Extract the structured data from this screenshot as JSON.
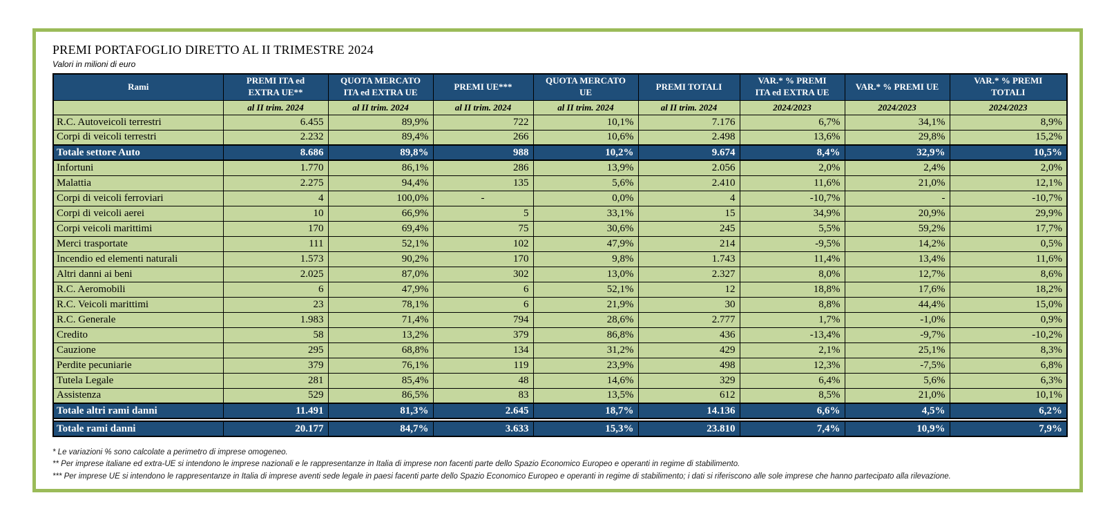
{
  "title": "PREMI PORTAFOGLIO DIRETTO AL II TRIMESTRE 2024",
  "subtitle": "Valori in milioni di euro",
  "colors": {
    "header_bg": "#1F4E79",
    "row_bg": "#C5D79E",
    "frame_border": "#9BBB59",
    "header_text": "#FFFFFF",
    "body_text": "#000000"
  },
  "table": {
    "columns": [
      {
        "label": "Rami",
        "sub": ""
      },
      {
        "label": "PREMI ITA ed\nEXTRA UE**",
        "sub": "al II trim. 2024"
      },
      {
        "label": "QUOTA MERCATO\nITA ed EXTRA UE",
        "sub": "al II trim. 2024"
      },
      {
        "label": "PREMI UE***",
        "sub": "al II trim. 2024"
      },
      {
        "label": "QUOTA MERCATO\nUE",
        "sub": "al II trim. 2024"
      },
      {
        "label": "PREMI TOTALI",
        "sub": "al II trim. 2024"
      },
      {
        "label": "VAR.* % PREMI\nITA ed EXTRA UE",
        "sub": "2024/2023"
      },
      {
        "label": "VAR.* % PREMI UE",
        "sub": "2024/2023"
      },
      {
        "label": "VAR.* % PREMI\nTOTALI",
        "sub": "2024/2023"
      }
    ],
    "rows": [
      {
        "type": "data",
        "cells": [
          "R.C. Autoveicoli terrestri",
          "6.455",
          "89,9%",
          "722",
          "10,1%",
          "7.176",
          "6,7%",
          "34,1%",
          "8,9%"
        ]
      },
      {
        "type": "data",
        "cells": [
          "Corpi di veicoli terrestri",
          "2.232",
          "89,4%",
          "266",
          "10,6%",
          "2.498",
          "13,6%",
          "29,8%",
          "15,2%"
        ]
      },
      {
        "type": "total",
        "cells": [
          "Totale settore Auto",
          "8.686",
          "89,8%",
          "988",
          "10,2%",
          "9.674",
          "8,4%",
          "32,9%",
          "10,5%"
        ]
      },
      {
        "type": "data",
        "cells": [
          "Infortuni",
          "1.770",
          "86,1%",
          "286",
          "13,9%",
          "2.056",
          "2,0%",
          "2,4%",
          "2,0%"
        ]
      },
      {
        "type": "data",
        "cells": [
          "Malattia",
          "2.275",
          "94,4%",
          "135",
          "5,6%",
          "2.410",
          "11,6%",
          "21,0%",
          "12,1%"
        ]
      },
      {
        "type": "data",
        "cells": [
          "Corpi di veicoli ferroviari",
          "4",
          "100,0%",
          "-",
          "0,0%",
          "4",
          "-10,7%",
          "-",
          "-10,7%"
        ]
      },
      {
        "type": "data",
        "cells": [
          "Corpi di veicoli aerei",
          "10",
          "66,9%",
          "5",
          "33,1%",
          "15",
          "34,9%",
          "20,9%",
          "29,9%"
        ]
      },
      {
        "type": "data",
        "cells": [
          "Corpi veicoli marittimi",
          "170",
          "69,4%",
          "75",
          "30,6%",
          "245",
          "5,5%",
          "59,2%",
          "17,7%"
        ]
      },
      {
        "type": "data",
        "cells": [
          "Merci trasportate",
          "111",
          "52,1%",
          "102",
          "47,9%",
          "214",
          "-9,5%",
          "14,2%",
          "0,5%"
        ]
      },
      {
        "type": "data",
        "cells": [
          "Incendio ed elementi naturali",
          "1.573",
          "90,2%",
          "170",
          "9,8%",
          "1.743",
          "11,4%",
          "13,4%",
          "11,6%"
        ]
      },
      {
        "type": "data",
        "cells": [
          "Altri danni ai beni",
          "2.025",
          "87,0%",
          "302",
          "13,0%",
          "2.327",
          "8,0%",
          "12,7%",
          "8,6%"
        ]
      },
      {
        "type": "data",
        "cells": [
          "R.C. Aeromobili",
          "6",
          "47,9%",
          "6",
          "52,1%",
          "12",
          "18,8%",
          "17,6%",
          "18,2%"
        ]
      },
      {
        "type": "data",
        "cells": [
          "R.C. Veicoli marittimi",
          "23",
          "78,1%",
          "6",
          "21,9%",
          "30",
          "8,8%",
          "44,4%",
          "15,0%"
        ]
      },
      {
        "type": "data",
        "cells": [
          "R.C. Generale",
          "1.983",
          "71,4%",
          "794",
          "28,6%",
          "2.777",
          "1,7%",
          "-1,0%",
          "0,9%"
        ]
      },
      {
        "type": "data",
        "cells": [
          "Credito",
          "58",
          "13,2%",
          "379",
          "86,8%",
          "436",
          "-13,4%",
          "-9,7%",
          "-10,2%"
        ]
      },
      {
        "type": "data",
        "cells": [
          "Cauzione",
          "295",
          "68,8%",
          "134",
          "31,2%",
          "429",
          "2,1%",
          "25,1%",
          "8,3%"
        ]
      },
      {
        "type": "data",
        "cells": [
          "Perdite pecuniarie",
          "379",
          "76,1%",
          "119",
          "23,9%",
          "498",
          "12,3%",
          "-7,5%",
          "6,8%"
        ]
      },
      {
        "type": "data",
        "cells": [
          "Tutela Legale",
          "281",
          "85,4%",
          "48",
          "14,6%",
          "329",
          "6,4%",
          "5,6%",
          "6,3%"
        ]
      },
      {
        "type": "data",
        "cells": [
          "Assistenza",
          "529",
          "86,5%",
          "83",
          "13,5%",
          "612",
          "8,5%",
          "21,0%",
          "10,1%"
        ]
      },
      {
        "type": "total",
        "cells": [
          "Totale altri rami danni",
          "11.491",
          "81,3%",
          "2.645",
          "18,7%",
          "14.136",
          "6,6%",
          "4,5%",
          "6,2%"
        ]
      },
      {
        "type": "grand",
        "cells": [
          "Totale rami danni",
          "20.177",
          "84,7%",
          "3.633",
          "15,3%",
          "23.810",
          "7,4%",
          "10,9%",
          "7,9%"
        ]
      }
    ]
  },
  "footnotes": [
    "* Le variazioni % sono calcolate a perimetro di imprese omogeneo.",
    "** Per imprese italiane ed extra-UE si intendono le imprese nazionali e le rappresentanze in Italia di imprese non facenti parte dello Spazio Economico Europeo e operanti in regime di stabilimento.",
    "*** Per imprese UE si intendono le rappresentanze in Italia di imprese aventi sede legale in paesi facenti parte dello Spazio Economico Europeo e operanti in regime di stabilimento; i dati si riferiscono alle sole imprese che hanno partecipato alla rilevazione."
  ]
}
